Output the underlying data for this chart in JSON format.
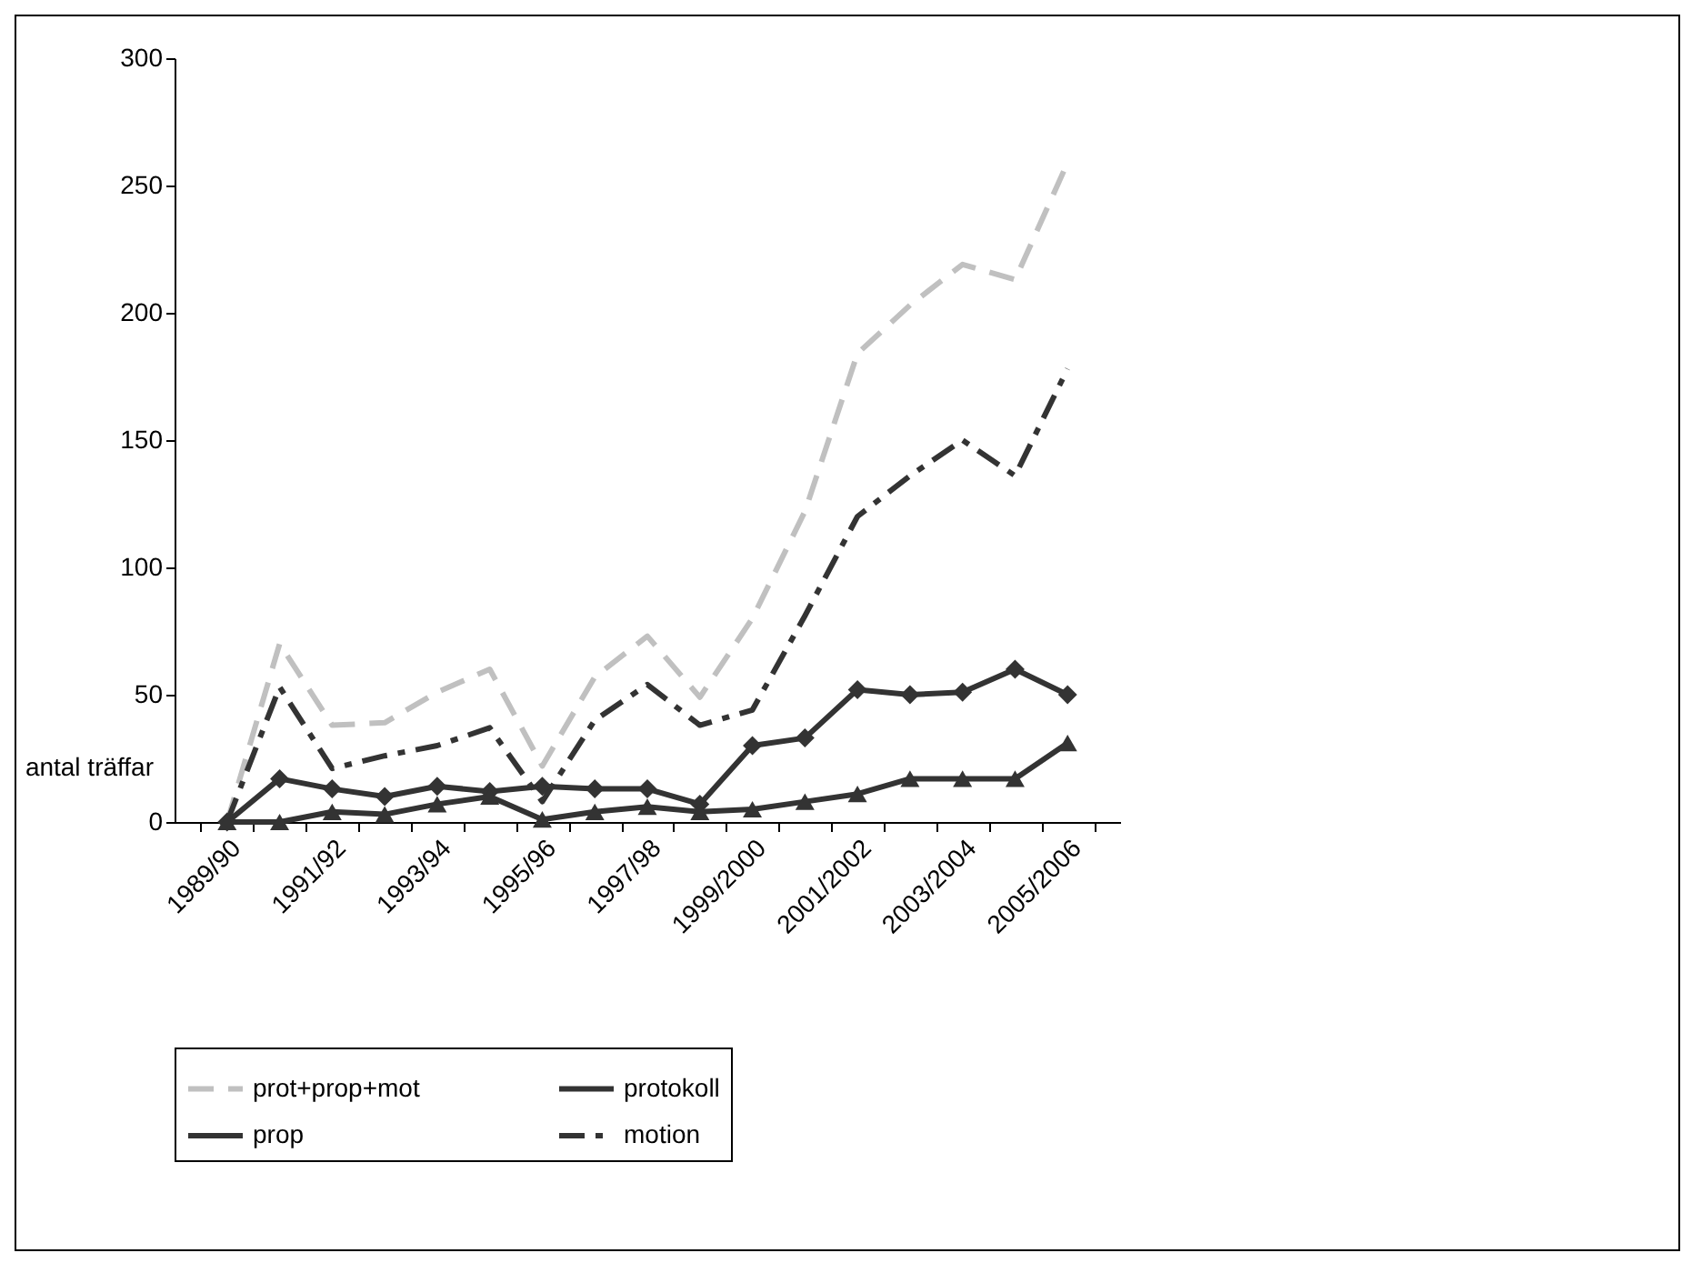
{
  "chart_data": {
    "type": "line",
    "ylabel": "antal träffar",
    "categories": [
      "1989/90",
      null,
      "1991/92",
      null,
      "1993/94",
      null,
      "1995/96",
      null,
      "1997/98",
      null,
      "1999/2000",
      null,
      "2001/2002",
      null,
      "2003/2004",
      null,
      "2005/2006"
    ],
    "ylim": [
      0,
      300
    ],
    "yticks": [
      0,
      50,
      100,
      150,
      200,
      250,
      300
    ],
    "grid": false,
    "legend": "bottom",
    "series": [
      {
        "name": "prot+prop+mot",
        "color": "#c0c0c0",
        "line_style": "dashed",
        "marker": "none",
        "values": [
          0,
          70,
          38,
          39,
          51,
          60,
          22,
          57,
          73,
          49,
          80,
          122,
          184,
          203,
          219,
          213,
          259
        ]
      },
      {
        "name": "protokoll",
        "color": "#333333",
        "line_style": "solid",
        "marker": "diamond",
        "values": [
          0,
          17,
          13,
          10,
          14,
          12,
          14,
          13,
          13,
          7,
          30,
          33,
          52,
          50,
          51,
          60,
          50
        ]
      },
      {
        "name": "prop",
        "color": "#333333",
        "line_style": "solid",
        "marker": "triangle",
        "values": [
          0,
          0,
          4,
          3,
          7,
          10,
          1,
          4,
          6,
          4,
          5,
          8,
          11,
          17,
          17,
          17,
          31
        ]
      },
      {
        "name": "motion",
        "color": "#333333",
        "line_style": "dashdot",
        "marker": "none",
        "values": [
          0,
          53,
          21,
          26,
          30,
          37,
          8,
          40,
          54,
          38,
          44,
          81,
          120,
          136,
          150,
          136,
          178
        ]
      }
    ]
  }
}
